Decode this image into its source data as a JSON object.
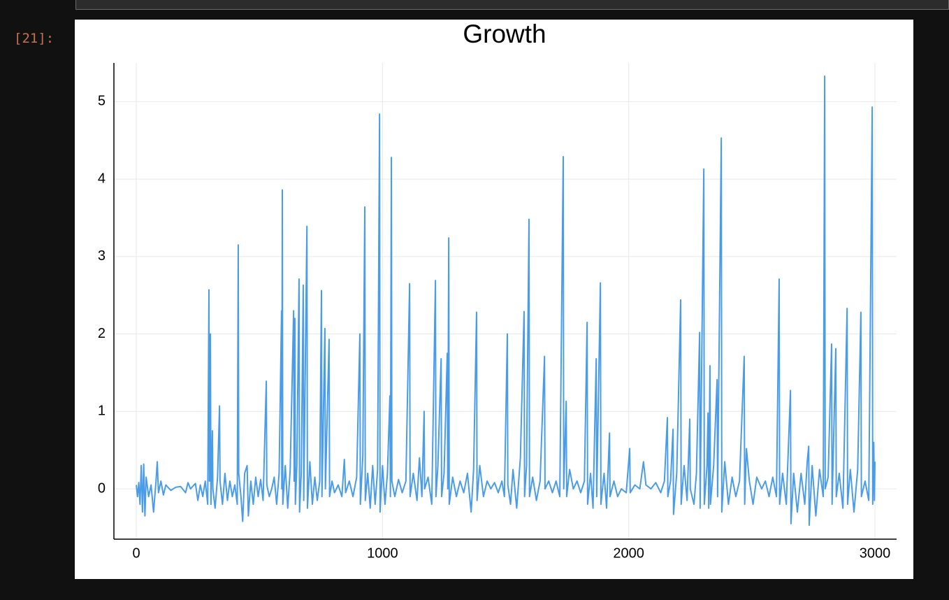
{
  "prompt": "[21]:",
  "chart_data": {
    "type": "line",
    "title": "Growth",
    "color": "#4a9ce8",
    "grid": true,
    "xlim": [
      -91,
      3088
    ],
    "ylim": [
      -0.65,
      5.5
    ],
    "xticks": [
      0,
      1000,
      2000,
      3000
    ],
    "yticks": [
      0,
      1,
      2,
      3,
      4,
      5
    ],
    "x": [
      0,
      5,
      10,
      15,
      20,
      25,
      30,
      35,
      40,
      50,
      60,
      70,
      80,
      85,
      90,
      100,
      110,
      120,
      140,
      160,
      180,
      200,
      210,
      220,
      240,
      250,
      260,
      270,
      280,
      290,
      295,
      297,
      301,
      303,
      309,
      311,
      320,
      330,
      338,
      340,
      350,
      360,
      370,
      380,
      390,
      400,
      410,
      414,
      416,
      425,
      432,
      440,
      450,
      455,
      465,
      475,
      485,
      495,
      505,
      515,
      528,
      530,
      540,
      550,
      560,
      570,
      580,
      590,
      591,
      593,
      595,
      605,
      615,
      625,
      639,
      641,
      644,
      646,
      652,
      661,
      663,
      670,
      678,
      680,
      693,
      695,
      705,
      715,
      725,
      735,
      745,
      752,
      754,
      766,
      768,
      783,
      785,
      795,
      805,
      820,
      835,
      845,
      850,
      865,
      880,
      895,
      908,
      910,
      920,
      928,
      930,
      940,
      950,
      960,
      970,
      980,
      988,
      990,
      1000,
      1010,
      1020,
      1030,
      1032,
      1036,
      1038,
      1050,
      1065,
      1080,
      1095,
      1110,
      1112,
      1125,
      1140,
      1150,
      1160,
      1169,
      1171,
      1185,
      1200,
      1215,
      1217,
      1225,
      1238,
      1240,
      1250,
      1263,
      1265,
      1269,
      1271,
      1285,
      1300,
      1315,
      1330,
      1345,
      1360,
      1370,
      1382,
      1384,
      1395,
      1410,
      1425,
      1440,
      1455,
      1470,
      1485,
      1495,
      1507,
      1509,
      1520,
      1530,
      1545,
      1560,
      1575,
      1577,
      1585,
      1595,
      1597,
      1610,
      1625,
      1640,
      1658,
      1660,
      1675,
      1690,
      1705,
      1720,
      1734,
      1736,
      1746,
      1748,
      1760,
      1775,
      1790,
      1805,
      1820,
      1831,
      1833,
      1845,
      1855,
      1868,
      1870,
      1885,
      1887,
      1900,
      1910,
      1922,
      1924,
      1940,
      1955,
      1970,
      1990,
      2004,
      2006,
      2025,
      2045,
      2060,
      2070,
      2090,
      2110,
      2130,
      2145,
      2157,
      2159,
      2170,
      2180,
      2182,
      2195,
      2211,
      2213,
      2225,
      2237,
      2248,
      2250,
      2265,
      2275,
      2288,
      2290,
      2305,
      2307,
      2318,
      2322,
      2325,
      2330,
      2332,
      2345,
      2359,
      2361,
      2376,
      2378,
      2390,
      2405,
      2420,
      2435,
      2450,
      2469,
      2471,
      2478,
      2490,
      2505,
      2520,
      2540,
      2555,
      2570,
      2585,
      2600,
      2611,
      2613,
      2625,
      2640,
      2657,
      2659,
      2670,
      2685,
      2700,
      2715,
      2725,
      2731,
      2733,
      2745,
      2760,
      2775,
      2790,
      2796,
      2798,
      2810,
      2824,
      2826,
      2841,
      2843,
      2855,
      2870,
      2887,
      2889,
      2900,
      2915,
      2930,
      2943,
      2945,
      2960,
      2975,
      2989,
      2991,
      2995,
      2998,
      3000
    ],
    "values": [
      0.05,
      -0.1,
      0.08,
      -0.2,
      0.3,
      -0.3,
      0.32,
      -0.35,
      0.15,
      -0.1,
      0.05,
      -0.3,
      0.1,
      0.35,
      -0.05,
      0.1,
      -0.08,
      0.05,
      -0.02,
      0.02,
      0.03,
      -0.05,
      0.08,
      0.0,
      0.07,
      -0.15,
      0.05,
      -0.1,
      0.1,
      -0.2,
      2.57,
      0.1,
      2.0,
      -0.2,
      0.75,
      0.0,
      -0.25,
      0.15,
      1.07,
      0.1,
      -0.2,
      0.2,
      -0.15,
      0.1,
      -0.1,
      0.05,
      -0.2,
      3.15,
      0.2,
      -0.1,
      -0.42,
      0.2,
      0.3,
      -0.35,
      0.1,
      -0.2,
      0.15,
      -0.1,
      0.12,
      -0.15,
      1.39,
      0.05,
      -0.1,
      0.0,
      0.15,
      -0.2,
      0.2,
      2.3,
      0.0,
      3.86,
      -0.2,
      0.3,
      -0.25,
      0.25,
      2.3,
      0.1,
      2.2,
      -0.2,
      0.3,
      2.71,
      -0.3,
      0.2,
      2.63,
      -0.15,
      3.39,
      -0.25,
      0.35,
      -0.2,
      0.15,
      -0.15,
      0.1,
      2.56,
      -0.1,
      2.07,
      0.0,
      1.93,
      -0.1,
      0.1,
      -0.05,
      0.05,
      -0.1,
      0.38,
      -0.05,
      0.1,
      -0.1,
      0.15,
      2.0,
      -0.2,
      0.42,
      3.64,
      -0.15,
      0.2,
      -0.25,
      0.3,
      -0.2,
      0.25,
      4.84,
      -0.3,
      0.3,
      -0.2,
      0.2,
      1.2,
      -0.1,
      4.28,
      0.1,
      -0.1,
      0.12,
      -0.05,
      0.1,
      2.65,
      -0.1,
      0.2,
      -0.15,
      0.4,
      -0.1,
      1.0,
      0.0,
      0.15,
      -0.2,
      2.69,
      -0.1,
      0.3,
      1.68,
      -0.1,
      0.2,
      1.75,
      0.0,
      3.24,
      -0.2,
      0.15,
      -0.1,
      0.1,
      -0.05,
      0.2,
      -0.3,
      0.25,
      2.28,
      -0.15,
      0.3,
      -0.1,
      0.1,
      0.0,
      0.08,
      -0.05,
      0.1,
      -0.1,
      2.0,
      0.05,
      -0.2,
      0.25,
      -0.25,
      0.4,
      2.29,
      -0.1,
      0.3,
      3.48,
      -0.1,
      0.15,
      -0.15,
      0.1,
      1.71,
      0.0,
      0.1,
      -0.05,
      0.1,
      -0.1,
      4.29,
      0.0,
      1.13,
      -0.1,
      0.25,
      0.0,
      0.1,
      -0.05,
      0.1,
      2.15,
      -0.2,
      0.2,
      -0.25,
      1.68,
      -0.1,
      2.66,
      -0.2,
      0.2,
      -0.25,
      0.72,
      -0.1,
      0.1,
      -0.1,
      0.0,
      -0.05,
      0.52,
      -0.05,
      0.05,
      0.0,
      0.35,
      0.05,
      0.0,
      0.08,
      -0.05,
      0.1,
      0.92,
      -0.1,
      0.1,
      0.77,
      -0.33,
      0.2,
      2.44,
      -0.2,
      0.3,
      -0.15,
      0.9,
      0.0,
      -0.2,
      0.2,
      2.02,
      -0.25,
      4.13,
      -0.2,
      0.3,
      0.98,
      -0.25,
      1.59,
      -0.2,
      0.3,
      1.41,
      -0.1,
      4.53,
      -0.3,
      0.35,
      -0.2,
      0.15,
      -0.1,
      0.1,
      1.71,
      -0.2,
      0.52,
      0.1,
      -0.2,
      0.15,
      0.0,
      0.1,
      -0.1,
      0.15,
      -0.1,
      2.71,
      -0.2,
      0.2,
      -0.2,
      1.27,
      -0.45,
      0.2,
      -0.3,
      0.2,
      -0.2,
      0.35,
      0.55,
      -0.47,
      0.3,
      -0.35,
      0.25,
      -0.1,
      5.33,
      0.0,
      0.15,
      1.87,
      -0.2,
      1.81,
      -0.1,
      0.2,
      -0.25,
      2.33,
      -0.2,
      0.25,
      -0.3,
      0.25,
      2.28,
      -0.1,
      0.1,
      -0.15,
      4.93,
      -0.2,
      0.6,
      -0.15,
      0.35
    ]
  }
}
